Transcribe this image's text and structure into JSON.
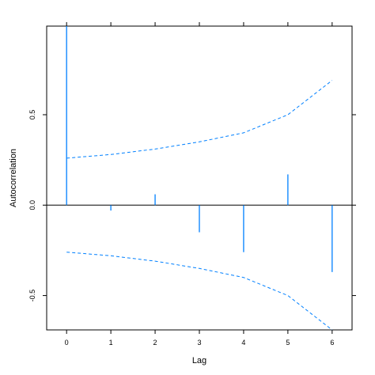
{
  "chart_data": {
    "type": "bar",
    "title": "",
    "xlabel": "Lag",
    "ylabel": "Autocorrelation",
    "xlim": [
      -0.45,
      6.45
    ],
    "ylim": [
      -0.69,
      0.99
    ],
    "x_ticks": [
      0,
      1,
      2,
      3,
      4,
      5,
      6
    ],
    "x_tick_labels": [
      "0",
      "1",
      "2",
      "3",
      "4",
      "5",
      "6"
    ],
    "y_ticks": [
      -0.5,
      0.0,
      0.5
    ],
    "y_tick_labels": [
      "-0.5",
      "0.0",
      "0.5"
    ],
    "series": [
      {
        "lags": [
          0,
          1,
          2,
          3,
          4,
          5,
          6
        ],
        "values": [
          1.0,
          -0.03,
          0.06,
          -0.15,
          -0.26,
          0.17,
          -0.37
        ],
        "color": "#0080ff"
      }
    ],
    "confidence_bands": {
      "lags": [
        0,
        1,
        2,
        3,
        4,
        5,
        6
      ],
      "upper": [
        0.26,
        0.28,
        0.31,
        0.35,
        0.4,
        0.5,
        0.69
      ],
      "lower": [
        -0.26,
        -0.28,
        -0.31,
        -0.35,
        -0.4,
        -0.5,
        -0.69
      ],
      "style": "dashed",
      "color": "#0080ff"
    },
    "zero_line": true,
    "grid": false,
    "legend": "none"
  }
}
